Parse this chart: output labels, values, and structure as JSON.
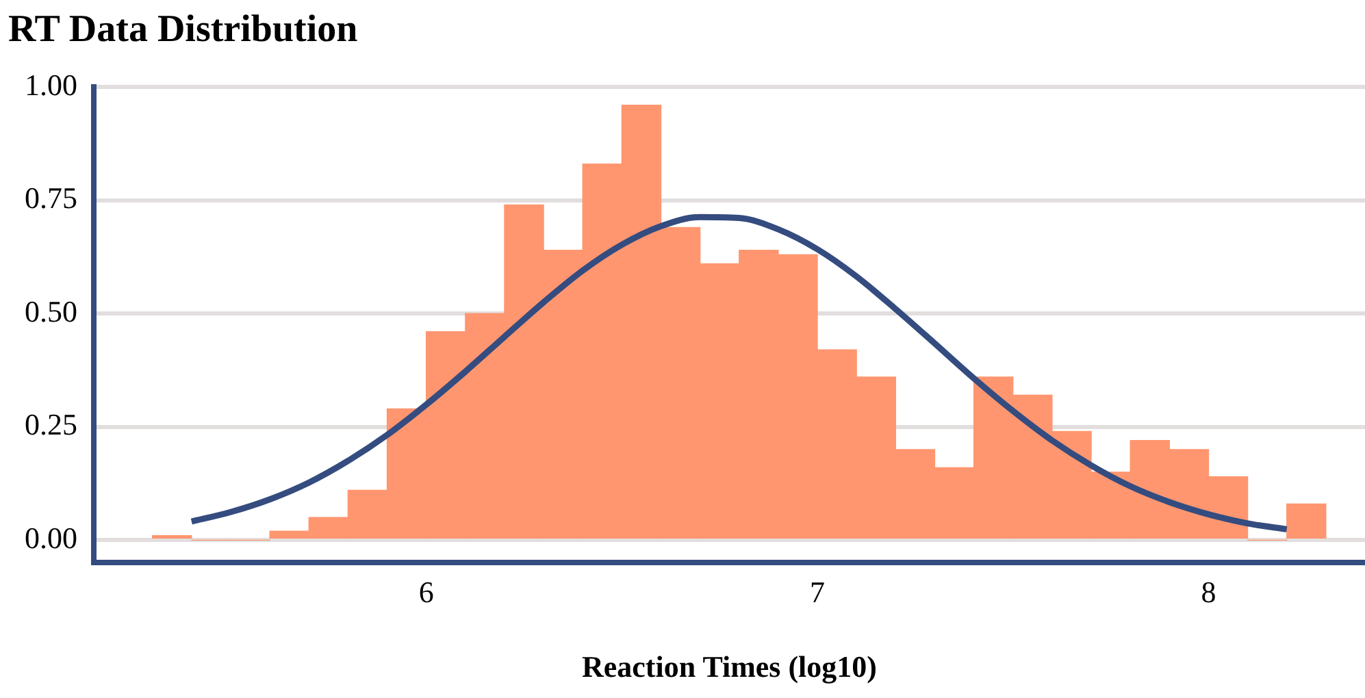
{
  "chart_data": {
    "type": "histogram",
    "title": "RT Data Distribution",
    "xlabel": "Reaction Times (log10)",
    "bins": [
      5.3,
      5.4,
      5.5,
      5.6,
      5.7,
      5.8,
      5.9,
      6.0,
      6.1,
      6.2,
      6.3,
      6.4,
      6.5,
      6.6,
      6.7,
      6.8,
      6.9,
      7.0,
      7.1,
      7.2,
      7.3,
      7.4,
      7.5,
      7.6,
      7.7,
      7.8,
      7.9,
      8.0,
      8.1,
      8.2,
      8.3
    ],
    "values": [
      0.01,
      0,
      0,
      0.02,
      0.05,
      0.11,
      0.29,
      0.46,
      0.5,
      0.74,
      0.64,
      0.83,
      0.96,
      0.69,
      0.61,
      0.64,
      0.63,
      0.42,
      0.36,
      0.2,
      0.16,
      0.36,
      0.32,
      0.24,
      0.15,
      0.22,
      0.2,
      0.14,
      0,
      0.08
    ],
    "color": "#ff9670",
    "series": [
      {
        "type": "line",
        "color": "#344c7f",
        "x": [
          5.4,
          5.5,
          5.6,
          5.7,
          5.8,
          5.9,
          6.0,
          6.1,
          6.2,
          6.3,
          6.4,
          6.5,
          6.6,
          6.7,
          6.8,
          6.9,
          7.0,
          7.1,
          7.2,
          7.3,
          7.4,
          7.5,
          7.6,
          7.7,
          7.8,
          7.9,
          8.0,
          8.1,
          8.2
        ],
        "values": [
          0.041,
          0.062,
          0.09,
          0.127,
          0.175,
          0.232,
          0.299,
          0.372,
          0.449,
          0.525,
          0.595,
          0.652,
          0.693,
          0.713,
          0.711,
          0.686,
          0.642,
          0.582,
          0.51,
          0.434,
          0.357,
          0.285,
          0.22,
          0.165,
          0.119,
          0.084,
          0.057,
          0.037,
          0.024
        ]
      }
    ],
    "xlim": [
      5.15,
      8.4
    ],
    "xticks": [
      6,
      7,
      8
    ],
    "ylim": [
      -0.05,
      1.0
    ],
    "yticks": [
      {
        "value": 0,
        "label": "0.00"
      },
      {
        "value": 0.25,
        "label": "0.25"
      },
      {
        "value": 0.5,
        "label": "0.50"
      },
      {
        "value": 0.75,
        "label": "0.75"
      },
      {
        "value": 1.0,
        "label": "1.00"
      }
    ],
    "grid": "y",
    "marker": "none",
    "line_style": "solid"
  }
}
